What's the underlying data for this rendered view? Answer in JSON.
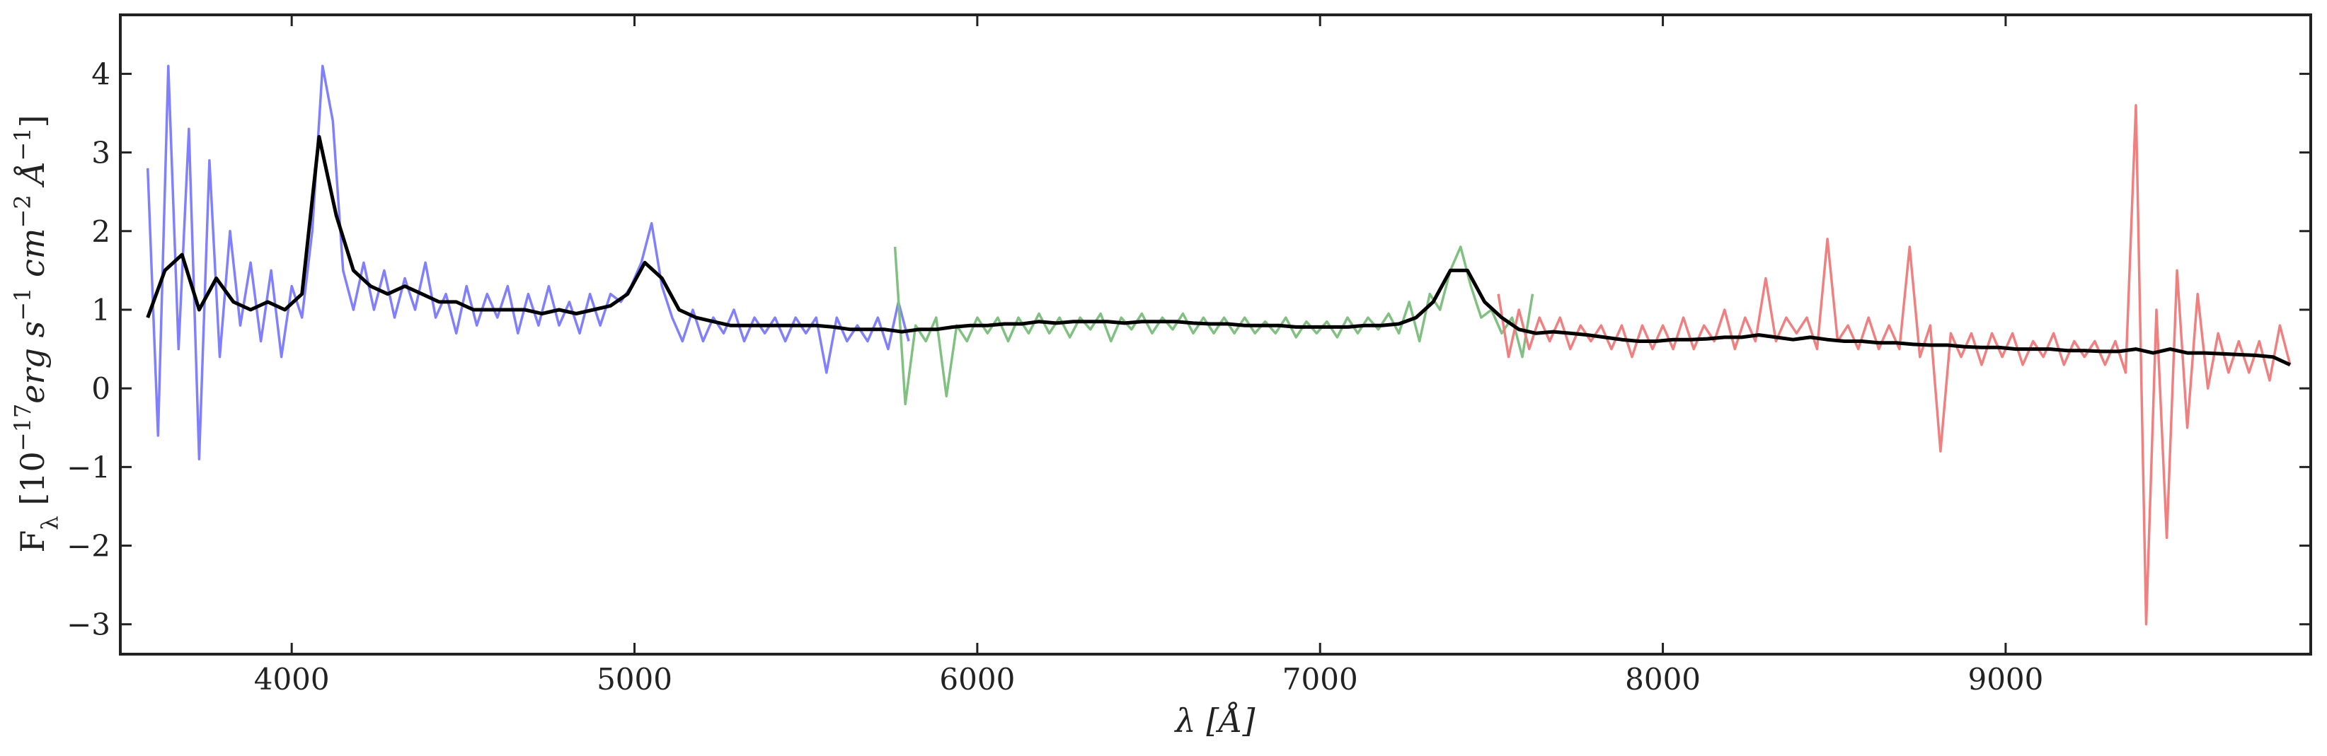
{
  "chart_data": {
    "type": "line",
    "xlabel": "λ [Å]",
    "ylabel": [
      "F",
      "λ",
      " [10",
      "−17",
      "erg s",
      "−1",
      " cm",
      "−2",
      " Å",
      "−1",
      "]"
    ],
    "xlim": [
      3500,
      9890
    ],
    "ylim": [
      -3.38,
      4.75
    ],
    "xticks": [
      4000,
      5000,
      6000,
      7000,
      8000,
      9000
    ],
    "yticks": [
      {
        "value": -3,
        "label": "−3"
      },
      {
        "value": -2,
        "label": "−2"
      },
      {
        "value": -1,
        "label": "−1"
      },
      0,
      1,
      2,
      3,
      4
    ],
    "grid": false,
    "series": [
      {
        "color": "#8080ff",
        "width": 3.5,
        "x": [
          3580,
          3610,
          3640,
          3670,
          3700,
          3730,
          3760,
          3790,
          3820,
          3850,
          3880,
          3910,
          3940,
          3970,
          4000,
          4030,
          4060,
          4090,
          4120,
          4150,
          4180,
          4210,
          4240,
          4270,
          4300,
          4330,
          4360,
          4390,
          4420,
          4450,
          4480,
          4510,
          4540,
          4570,
          4600,
          4630,
          4660,
          4690,
          4720,
          4750,
          4780,
          4810,
          4840,
          4870,
          4900,
          4930,
          4960,
          4990,
          5020,
          5050,
          5080,
          5110,
          5140,
          5170,
          5200,
          5230,
          5260,
          5290,
          5320,
          5350,
          5380,
          5410,
          5440,
          5470,
          5500,
          5530,
          5560,
          5590,
          5620,
          5650,
          5680,
          5710,
          5740,
          5770,
          5800
        ],
        "values": [
          2.8,
          -0.6,
          4.1,
          0.5,
          3.3,
          -0.9,
          2.9,
          0.4,
          2.0,
          0.8,
          1.6,
          0.6,
          1.5,
          0.4,
          1.3,
          0.9,
          2.0,
          4.1,
          3.4,
          1.5,
          1.0,
          1.6,
          1.0,
          1.5,
          0.9,
          1.4,
          1.0,
          1.6,
          0.9,
          1.2,
          0.7,
          1.3,
          0.8,
          1.2,
          0.9,
          1.3,
          0.7,
          1.2,
          0.8,
          1.3,
          0.8,
          1.1,
          0.7,
          1.2,
          0.8,
          1.2,
          1.1,
          1.3,
          1.6,
          2.1,
          1.3,
          0.9,
          0.6,
          1.0,
          0.6,
          0.9,
          0.7,
          1.0,
          0.6,
          0.9,
          0.7,
          0.9,
          0.6,
          0.9,
          0.7,
          0.9,
          0.2,
          0.9,
          0.6,
          0.8,
          0.6,
          0.9,
          0.5,
          1.1,
          0.6
        ]
      },
      {
        "color": "#80c080",
        "width": 3.5,
        "x": [
          5760,
          5790,
          5820,
          5850,
          5880,
          5910,
          5940,
          5970,
          6000,
          6030,
          6060,
          6090,
          6120,
          6150,
          6180,
          6210,
          6240,
          6270,
          6300,
          6330,
          6360,
          6390,
          6420,
          6450,
          6480,
          6510,
          6540,
          6570,
          6600,
          6630,
          6660,
          6690,
          6720,
          6750,
          6780,
          6810,
          6840,
          6870,
          6900,
          6930,
          6960,
          6990,
          7020,
          7050,
          7080,
          7110,
          7140,
          7170,
          7200,
          7230,
          7260,
          7290,
          7320,
          7350,
          7380,
          7410,
          7440,
          7470,
          7500,
          7530,
          7560,
          7590,
          7620
        ],
        "values": [
          1.8,
          -0.2,
          0.8,
          0.6,
          0.9,
          -0.1,
          0.8,
          0.6,
          0.9,
          0.7,
          0.9,
          0.6,
          0.9,
          0.7,
          0.95,
          0.7,
          0.9,
          0.65,
          0.9,
          0.75,
          0.95,
          0.6,
          0.9,
          0.75,
          0.95,
          0.7,
          0.9,
          0.75,
          0.95,
          0.7,
          0.9,
          0.7,
          0.9,
          0.7,
          0.9,
          0.7,
          0.85,
          0.7,
          0.9,
          0.65,
          0.85,
          0.7,
          0.85,
          0.65,
          0.9,
          0.7,
          0.9,
          0.75,
          0.95,
          0.7,
          1.1,
          0.6,
          1.2,
          1.0,
          1.5,
          1.8,
          1.3,
          0.9,
          1.0,
          0.7,
          0.9,
          0.4,
          1.2
        ]
      },
      {
        "color": "#f08080",
        "width": 3.5,
        "x": [
          7520,
          7550,
          7580,
          7610,
          7640,
          7670,
          7700,
          7730,
          7760,
          7790,
          7820,
          7850,
          7880,
          7910,
          7940,
          7970,
          8000,
          8030,
          8060,
          8090,
          8120,
          8150,
          8180,
          8210,
          8240,
          8270,
          8300,
          8330,
          8360,
          8390,
          8420,
          8450,
          8480,
          8510,
          8540,
          8570,
          8600,
          8630,
          8660,
          8690,
          8720,
          8750,
          8780,
          8810,
          8840,
          8870,
          8900,
          8930,
          8960,
          8990,
          9020,
          9050,
          9080,
          9110,
          9140,
          9170,
          9200,
          9230,
          9260,
          9290,
          9320,
          9350,
          9380,
          9410,
          9440,
          9470,
          9500,
          9530,
          9560,
          9590,
          9620,
          9650,
          9680,
          9710,
          9740,
          9770,
          9800,
          9830
        ],
        "values": [
          1.2,
          0.4,
          1.0,
          0.5,
          0.9,
          0.6,
          0.9,
          0.5,
          0.8,
          0.6,
          0.8,
          0.5,
          0.8,
          0.4,
          0.8,
          0.5,
          0.8,
          0.5,
          0.9,
          0.5,
          0.8,
          0.6,
          1.0,
          0.5,
          0.9,
          0.6,
          1.4,
          0.6,
          0.9,
          0.7,
          0.9,
          0.5,
          1.9,
          0.6,
          0.8,
          0.5,
          0.9,
          0.5,
          0.8,
          0.5,
          1.8,
          0.4,
          0.8,
          -0.8,
          0.7,
          0.4,
          0.7,
          0.3,
          0.7,
          0.4,
          0.7,
          0.3,
          0.6,
          0.4,
          0.7,
          0.3,
          0.6,
          0.4,
          0.6,
          0.3,
          0.6,
          0.2,
          3.6,
          -3.0,
          1.0,
          -1.9,
          1.5,
          -0.5,
          1.2,
          0.0,
          0.7,
          0.2,
          0.6,
          0.2,
          0.6,
          0.1,
          0.8,
          0.3
        ]
      },
      {
        "color": "#000000",
        "width": 5,
        "x": [
          3580,
          3630,
          3680,
          3730,
          3780,
          3830,
          3880,
          3930,
          3980,
          4030,
          4080,
          4130,
          4180,
          4230,
          4280,
          4330,
          4380,
          4430,
          4480,
          4530,
          4580,
          4630,
          4680,
          4730,
          4780,
          4830,
          4880,
          4930,
          4980,
          5030,
          5080,
          5130,
          5180,
          5230,
          5280,
          5330,
          5380,
          5430,
          5480,
          5530,
          5580,
          5630,
          5680,
          5730,
          5780,
          5830,
          5880,
          5930,
          5980,
          6030,
          6080,
          6130,
          6180,
          6230,
          6280,
          6330,
          6380,
          6430,
          6480,
          6530,
          6580,
          6630,
          6680,
          6730,
          6780,
          6830,
          6880,
          6930,
          6980,
          7030,
          7080,
          7130,
          7180,
          7230,
          7280,
          7330,
          7380,
          7430,
          7480,
          7530,
          7580,
          7630,
          7680,
          7730,
          7780,
          7830,
          7880,
          7930,
          7980,
          8030,
          8080,
          8130,
          8180,
          8230,
          8280,
          8330,
          8380,
          8430,
          8480,
          8530,
          8580,
          8630,
          8680,
          8730,
          8780,
          8830,
          8880,
          8930,
          8980,
          9030,
          9080,
          9130,
          9180,
          9230,
          9280,
          9330,
          9380,
          9430,
          9480,
          9530,
          9580,
          9630,
          9680,
          9730,
          9780,
          9830
        ],
        "values": [
          0.9,
          1.5,
          1.7,
          1.0,
          1.4,
          1.1,
          1.0,
          1.1,
          1.0,
          1.2,
          3.2,
          2.2,
          1.5,
          1.3,
          1.2,
          1.3,
          1.2,
          1.1,
          1.1,
          1.0,
          1.0,
          1.0,
          1.0,
          0.95,
          1.0,
          0.95,
          1.0,
          1.05,
          1.2,
          1.6,
          1.4,
          1.0,
          0.9,
          0.85,
          0.8,
          0.8,
          0.8,
          0.8,
          0.8,
          0.8,
          0.78,
          0.75,
          0.75,
          0.75,
          0.72,
          0.75,
          0.75,
          0.78,
          0.8,
          0.8,
          0.82,
          0.82,
          0.85,
          0.83,
          0.85,
          0.85,
          0.85,
          0.83,
          0.85,
          0.85,
          0.85,
          0.83,
          0.82,
          0.82,
          0.8,
          0.8,
          0.8,
          0.78,
          0.78,
          0.78,
          0.78,
          0.8,
          0.8,
          0.82,
          0.9,
          1.1,
          1.5,
          1.5,
          1.1,
          0.9,
          0.75,
          0.7,
          0.72,
          0.7,
          0.68,
          0.65,
          0.62,
          0.6,
          0.6,
          0.62,
          0.62,
          0.63,
          0.65,
          0.65,
          0.68,
          0.65,
          0.62,
          0.65,
          0.62,
          0.6,
          0.6,
          0.58,
          0.58,
          0.56,
          0.55,
          0.55,
          0.53,
          0.52,
          0.52,
          0.5,
          0.5,
          0.5,
          0.48,
          0.48,
          0.47,
          0.47,
          0.5,
          0.45,
          0.5,
          0.45,
          0.45,
          0.44,
          0.43,
          0.42,
          0.4,
          0.3
        ]
      }
    ]
  }
}
